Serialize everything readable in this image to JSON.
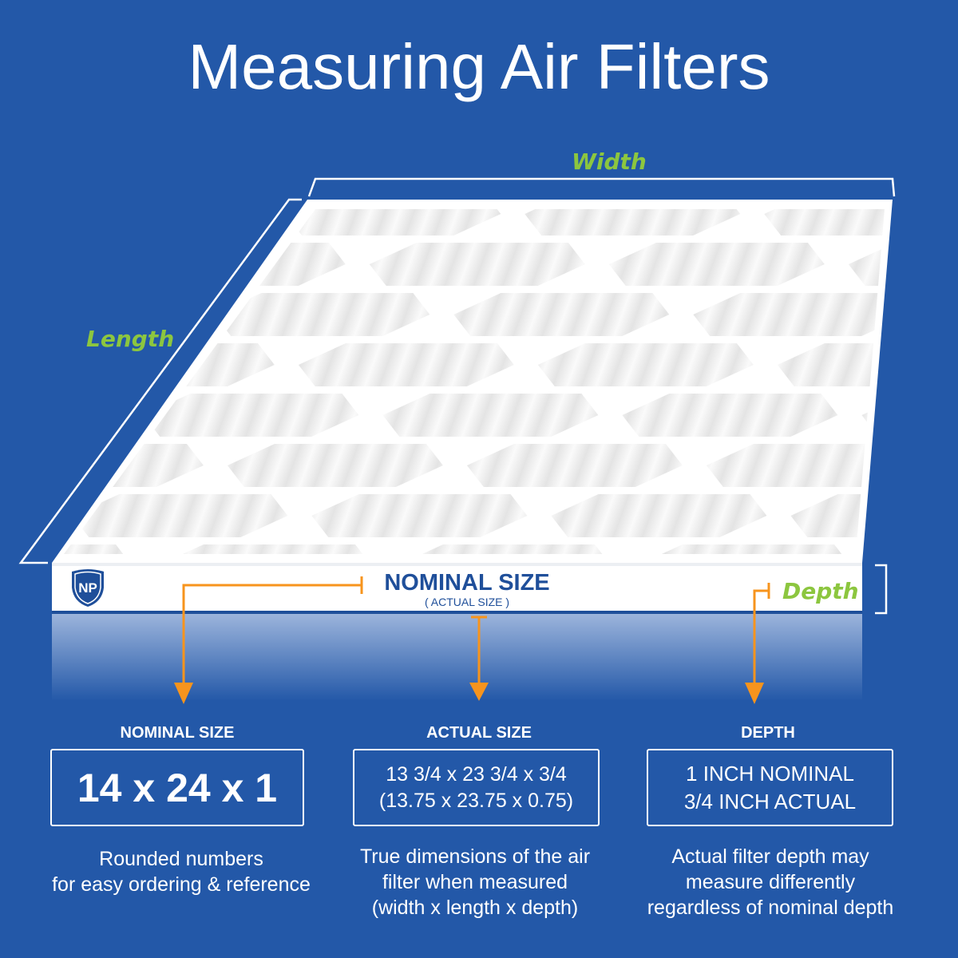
{
  "title": "Measuring Air Filters",
  "labels": {
    "width": "Width",
    "length": "Length",
    "depth": "Depth"
  },
  "filter_edge": {
    "nominal": "NOMINAL SIZE",
    "actual": "( ACTUAL SIZE )",
    "logo": "NP"
  },
  "columns": [
    {
      "title": "NOMINAL SIZE",
      "box_lines": [
        "14 x 24 x 1"
      ],
      "description": [
        "Rounded numbers",
        "for easy ordering & reference"
      ]
    },
    {
      "title": "ACTUAL SIZE",
      "box_lines": [
        "13 3/4 x 23 3/4 x 3/4",
        "(13.75 x 23.75 x 0.75)"
      ],
      "description": [
        "True dimensions of the air",
        "filter when measured",
        "(width x length x depth)"
      ]
    },
    {
      "title": "DEPTH",
      "box_lines": [
        "1 INCH NOMINAL",
        "3/4 INCH ACTUAL"
      ],
      "description": [
        "Actual filter depth may",
        "measure differently",
        "regardless of nominal depth"
      ]
    }
  ],
  "colors": {
    "background": "#2358a8",
    "accent_green": "#8cc63f",
    "arrow_orange": "#f7941d",
    "brand_blue": "#1f4f9a"
  }
}
